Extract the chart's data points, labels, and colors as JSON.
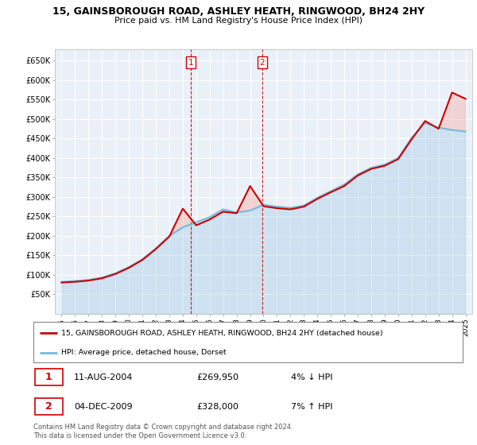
{
  "title": "15, GAINSBOROUGH ROAD, ASHLEY HEATH, RINGWOOD, BH24 2HY",
  "subtitle": "Price paid vs. HM Land Registry's House Price Index (HPI)",
  "ylabel_ticks": [
    "£650K",
    "£600K",
    "£550K",
    "£500K",
    "£450K",
    "£400K",
    "£350K",
    "£300K",
    "£250K",
    "£200K",
    "£150K",
    "£100K",
    "£50K"
  ],
  "ytick_vals": [
    650000,
    600000,
    550000,
    500000,
    450000,
    400000,
    350000,
    300000,
    250000,
    200000,
    150000,
    100000,
    50000
  ],
  "x_years": [
    1995,
    1996,
    1997,
    1998,
    1999,
    2000,
    2001,
    2002,
    2003,
    2004,
    2005,
    2006,
    2007,
    2008,
    2009,
    2010,
    2011,
    2012,
    2013,
    2014,
    2015,
    2016,
    2017,
    2018,
    2019,
    2020,
    2021,
    2022,
    2023,
    2024,
    2025
  ],
  "hpi_values": [
    82000,
    84000,
    87000,
    93000,
    104000,
    120000,
    140000,
    168000,
    200000,
    222000,
    235000,
    248000,
    268000,
    260000,
    265000,
    280000,
    275000,
    272000,
    278000,
    298000,
    315000,
    332000,
    358000,
    375000,
    383000,
    400000,
    452000,
    490000,
    478000,
    472000,
    468000
  ],
  "price_paid_values": [
    80000,
    82000,
    85000,
    91000,
    102000,
    118000,
    138000,
    166000,
    198000,
    269950,
    227000,
    242000,
    262000,
    258000,
    328000,
    276000,
    271000,
    268000,
    275000,
    295000,
    312000,
    328000,
    355000,
    372000,
    380000,
    397000,
    448000,
    495000,
    475000,
    568000,
    552000
  ],
  "sale1_x": 2004.6,
  "sale1_label": "1",
  "sale2_x": 2009.9,
  "sale2_label": "2",
  "legend_line1": "15, GAINSBOROUGH ROAD, ASHLEY HEATH, RINGWOOD, BH24 2HY (detached house)",
  "legend_line2": "HPI: Average price, detached house, Dorset",
  "table_row1_num": "1",
  "table_row1_date": "11-AUG-2004",
  "table_row1_price": "£269,950",
  "table_row1_hpi": "4% ↓ HPI",
  "table_row2_num": "2",
  "table_row2_date": "04-DEC-2009",
  "table_row2_price": "£328,000",
  "table_row2_hpi": "7% ↑ HPI",
  "footer": "Contains HM Land Registry data © Crown copyright and database right 2024.\nThis data is licensed under the Open Government Licence v3.0.",
  "red_color": "#cc0000",
  "blue_color": "#7ab8d9",
  "blue_fill": "#c8dff0",
  "red_fill": "#f4b8b0",
  "bg_color": "#eaf0f8",
  "grid_color": "#ffffff"
}
